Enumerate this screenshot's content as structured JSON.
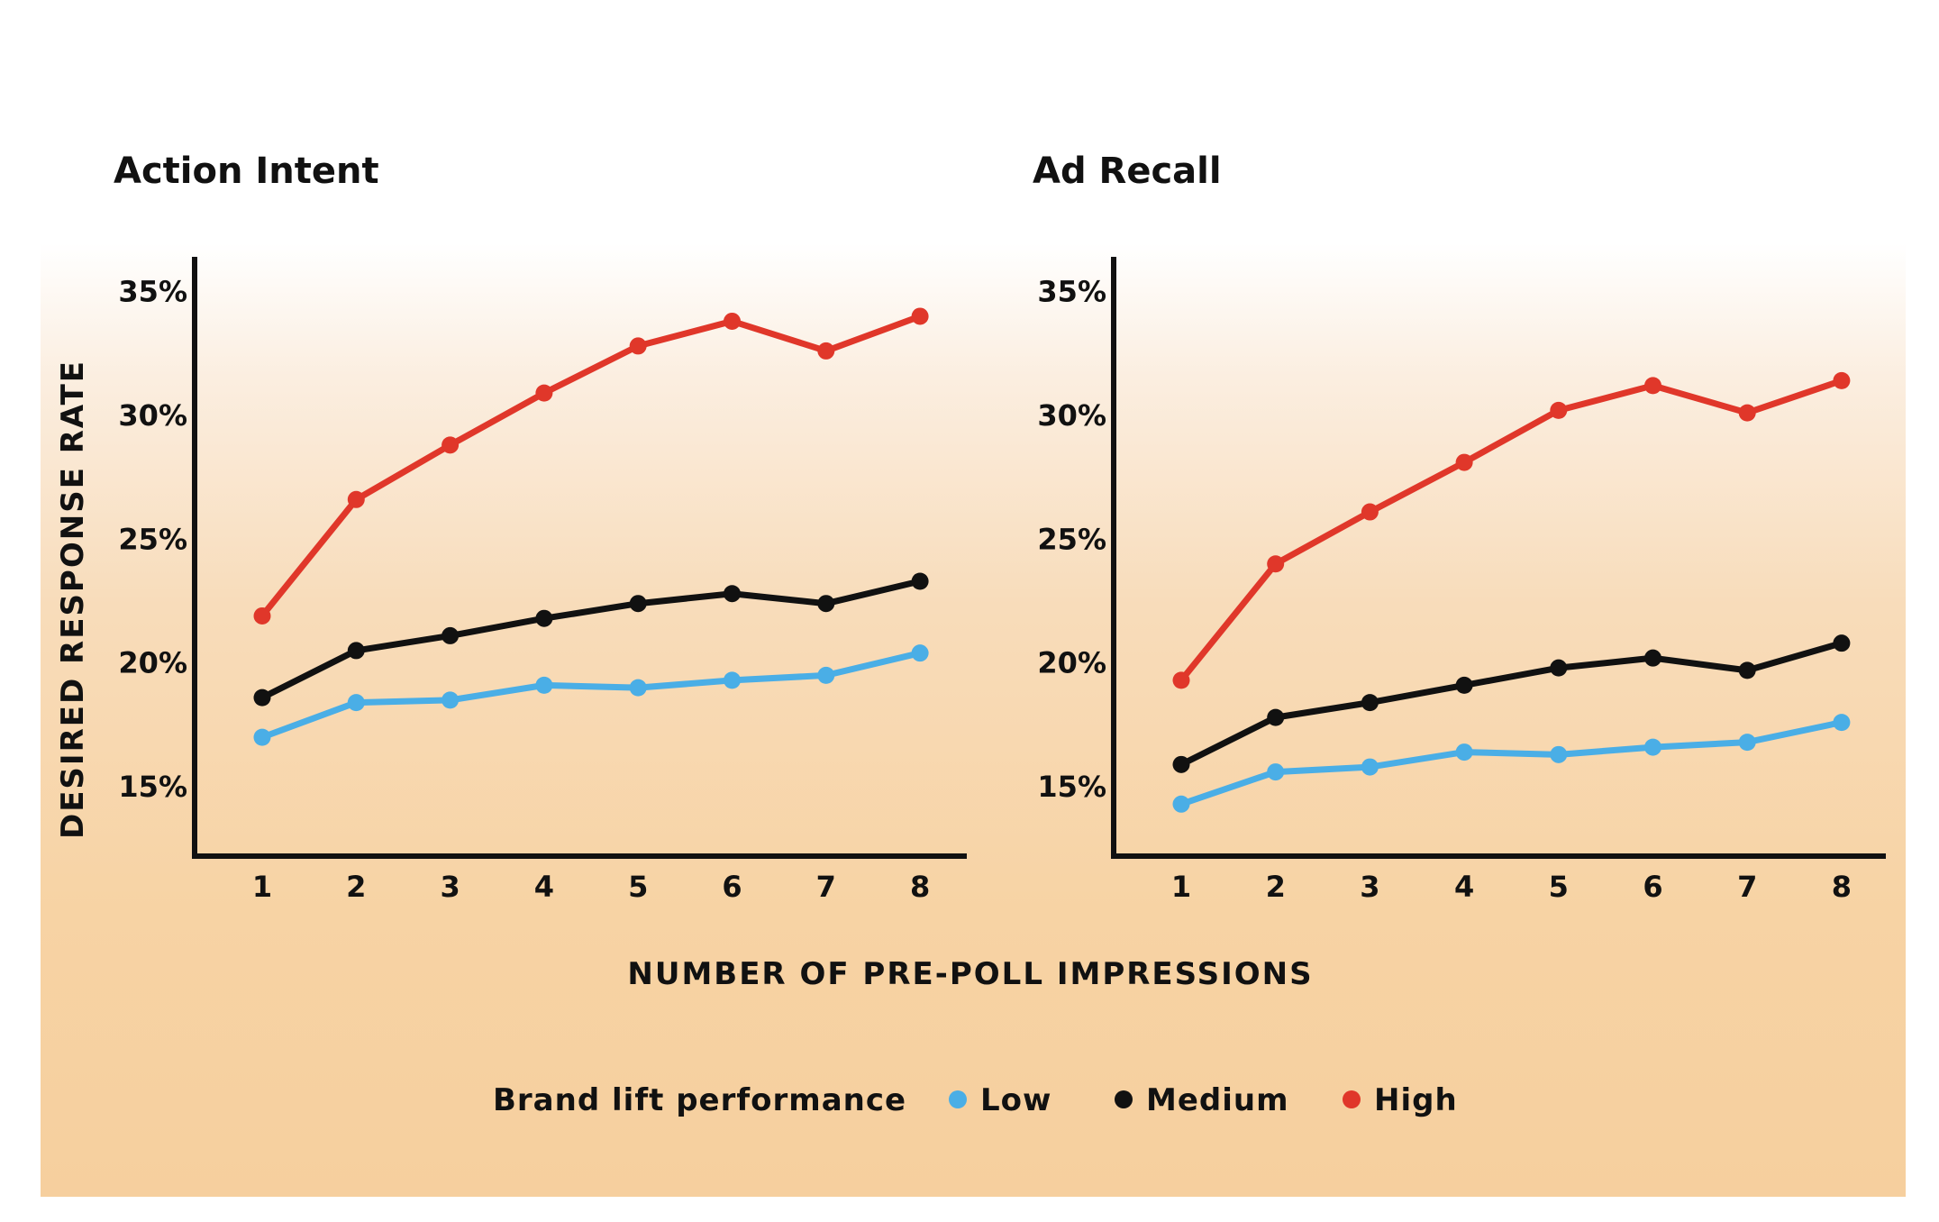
{
  "colors": {
    "low": "#4aaee6",
    "medium": "#111111",
    "high": "#e0372a",
    "axis": "#111111"
  },
  "shared": {
    "ylabel": "DESIRED RESPONSE RATE",
    "xlabel": "NUMBER OF PRE-POLL IMPRESSIONS"
  },
  "legend": {
    "title": "Brand lift performance",
    "items": [
      {
        "label": "Low",
        "color_key": "low"
      },
      {
        "label": "Medium",
        "color_key": "medium"
      },
      {
        "label": "High",
        "color_key": "high"
      }
    ]
  },
  "chart_data": [
    {
      "type": "line",
      "title": "Action Intent",
      "x": [
        1,
        2,
        3,
        4,
        5,
        6,
        7,
        8
      ],
      "yticks": [
        "15%",
        "20%",
        "25%",
        "30%",
        "35%"
      ],
      "ylim": [
        12.2,
        36.4
      ],
      "series": [
        {
          "name": "Low",
          "color_key": "low",
          "values": [
            17.0,
            18.4,
            18.5,
            19.1,
            19.0,
            19.3,
            19.5,
            20.4
          ]
        },
        {
          "name": "Medium",
          "color_key": "medium",
          "values": [
            18.6,
            20.5,
            21.1,
            21.8,
            22.4,
            22.8,
            22.4,
            23.3
          ]
        },
        {
          "name": "High",
          "color_key": "high",
          "values": [
            21.9,
            26.6,
            28.8,
            30.9,
            32.8,
            33.8,
            32.6,
            34.0
          ]
        }
      ]
    },
    {
      "type": "line",
      "title": "Ad Recall",
      "x": [
        1,
        2,
        3,
        4,
        5,
        6,
        7,
        8
      ],
      "yticks": [
        "15%",
        "20%",
        "25%",
        "30%",
        "35%"
      ],
      "ylim": [
        12.2,
        36.4
      ],
      "series": [
        {
          "name": "Low",
          "color_key": "low",
          "values": [
            14.3,
            15.6,
            15.8,
            16.4,
            16.3,
            16.6,
            16.8,
            17.6
          ]
        },
        {
          "name": "Medium",
          "color_key": "medium",
          "values": [
            15.9,
            17.8,
            18.4,
            19.1,
            19.8,
            20.2,
            19.7,
            20.8
          ]
        },
        {
          "name": "High",
          "color_key": "high",
          "values": [
            19.3,
            24.0,
            26.1,
            28.1,
            30.2,
            31.2,
            30.1,
            31.4
          ]
        }
      ]
    }
  ]
}
